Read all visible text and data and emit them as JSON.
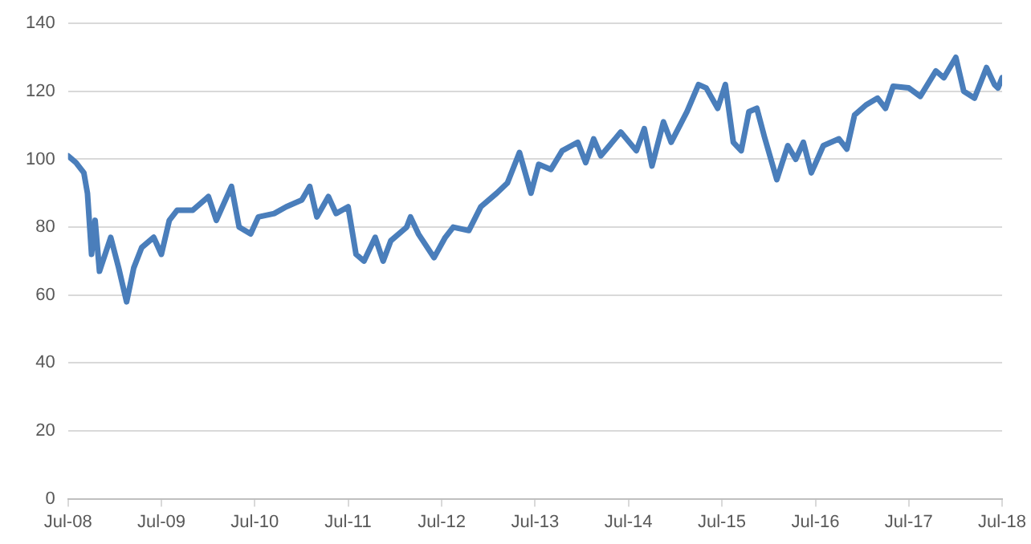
{
  "chart_data": {
    "type": "line",
    "marker": "none",
    "grid": "y",
    "legend": false,
    "xlim": [
      "2008-07",
      "2018-07"
    ],
    "xticks": [
      {
        "value": "2008-07",
        "label": "Jul-08"
      },
      {
        "value": "2009-07",
        "label": "Jul-09"
      },
      {
        "value": "2010-07",
        "label": "Jul-10"
      },
      {
        "value": "2011-07",
        "label": "Jul-11"
      },
      {
        "value": "2012-07",
        "label": "Jul-12"
      },
      {
        "value": "2013-07",
        "label": "Jul-13"
      },
      {
        "value": "2014-07",
        "label": "Jul-14"
      },
      {
        "value": "2015-07",
        "label": "Jul-15"
      },
      {
        "value": "2016-07",
        "label": "Jul-16"
      },
      {
        "value": "2017-07",
        "label": "Jul-17"
      },
      {
        "value": "2018-07",
        "label": "Jul-18"
      }
    ],
    "ylim": [
      0,
      140
    ],
    "yticks": [
      0,
      20,
      40,
      60,
      80,
      100,
      120,
      140
    ],
    "x": [
      "2008-07-01",
      "2008-08-01",
      "2008-09-01",
      "2008-09-15",
      "2008-10-01",
      "2008-10-15",
      "2008-11-01",
      "2008-12-15",
      "2009-01-15",
      "2009-02-15",
      "2009-03-15",
      "2009-04-15",
      "2009-06-01",
      "2009-07-01",
      "2009-08-01",
      "2009-09-01",
      "2009-11-01",
      "2010-01-01",
      "2010-02-01",
      "2010-04-01",
      "2010-05-01",
      "2010-06-15",
      "2010-07-15",
      "2010-09-15",
      "2010-11-01",
      "2011-01-01",
      "2011-02-01",
      "2011-03-01",
      "2011-04-15",
      "2011-05-15",
      "2011-07-01",
      "2011-08-01",
      "2011-09-01",
      "2011-10-15",
      "2011-11-15",
      "2011-12-15",
      "2012-02-15",
      "2012-03-01",
      "2012-04-01",
      "2012-06-01",
      "2012-07-15",
      "2012-08-15",
      "2012-10-15",
      "2012-12-01",
      "2013-02-01",
      "2013-03-15",
      "2013-05-01",
      "2013-06-15",
      "2013-07-15",
      "2013-09-01",
      "2013-10-15",
      "2013-12-15",
      "2014-01-15",
      "2014-02-15",
      "2014-03-15",
      "2014-06-01",
      "2014-08-01",
      "2014-09-01",
      "2014-10-01",
      "2014-11-15",
      "2014-12-15",
      "2015-02-15",
      "2015-04-01",
      "2015-05-01",
      "2015-06-15",
      "2015-07-15",
      "2015-08-15",
      "2015-09-15",
      "2015-10-15",
      "2015-11-15",
      "2015-12-15",
      "2016-02-01",
      "2016-03-15",
      "2016-04-15",
      "2016-05-15",
      "2016-06-15",
      "2016-08-01",
      "2016-10-01",
      "2016-11-01",
      "2016-12-01",
      "2017-01-15",
      "2017-03-01",
      "2017-04-01",
      "2017-05-01",
      "2017-07-01",
      "2017-08-15",
      "2017-10-15",
      "2017-11-15",
      "2018-01-01",
      "2018-02-01",
      "2018-03-15",
      "2018-05-01",
      "2018-06-01",
      "2018-06-15",
      "2018-07-01"
    ],
    "series": [
      {
        "color": "#4a7ebb",
        "values": [
          101,
          99,
          96,
          90,
          72,
          82,
          67,
          77,
          68,
          58,
          68,
          74,
          77,
          72,
          82,
          85,
          85,
          89,
          82,
          92,
          80,
          78,
          83,
          84,
          86,
          88,
          92,
          83,
          89,
          84,
          86,
          72,
          70,
          77,
          70,
          76,
          80,
          83,
          78,
          71,
          77,
          80,
          79,
          86,
          90,
          93,
          102,
          90,
          98.5,
          97,
          102.5,
          105,
          99,
          106,
          101,
          108,
          102.5,
          109,
          98,
          111,
          105,
          114,
          122,
          121,
          115,
          122,
          105,
          102.5,
          114,
          115,
          106.5,
          94,
          104,
          100,
          105,
          96,
          104,
          106,
          103,
          113,
          116,
          118,
          115,
          121.5,
          121,
          118.5,
          126,
          124,
          130,
          120,
          118,
          127,
          122,
          121,
          124
        ]
      }
    ]
  }
}
